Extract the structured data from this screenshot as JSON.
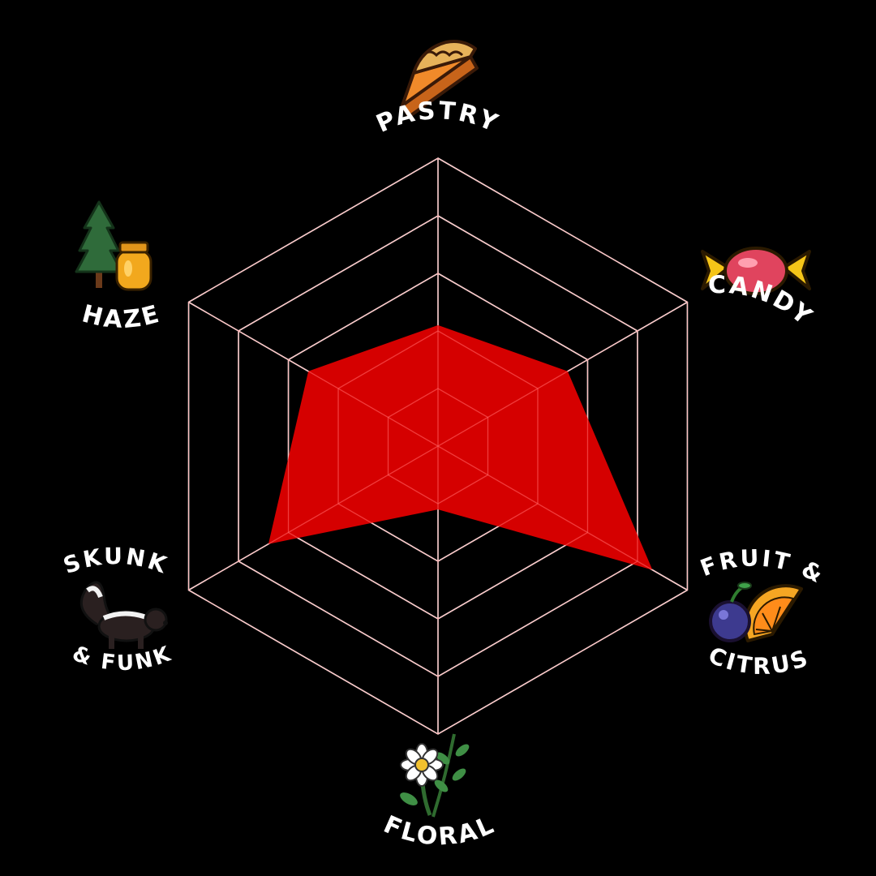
{
  "chart_data": {
    "type": "radar",
    "axes": [
      "PASTRY",
      "CANDY",
      "FRUIT & CITRUS",
      "FLORAL",
      "SKUNK & FUNK",
      "HAZE"
    ],
    "values": [
      2.1,
      2.6,
      4.3,
      1.1,
      3.4,
      2.6
    ],
    "rmax": 5,
    "rings": 5,
    "grid": true,
    "fill_color": "#e00000",
    "grid_color": "#ffffff",
    "background": "#000000"
  },
  "labels": {
    "pastry": "PASTRY",
    "candy": "CANDY",
    "fruit_line1": "FRUIT &",
    "fruit_line2": "CITRUS",
    "floral": "FLORAL",
    "skunk_line1": "SKUNK",
    "skunk_line2": "& FUNK",
    "haze": "HAZE"
  },
  "icons": {
    "pastry": "pie-slice-icon",
    "candy": "wrapped-candy-icon",
    "fruit": "blueberry-orange-icon",
    "floral": "daisy-sprig-icon",
    "skunk": "skunk-icon",
    "haze": "pine-honey-icon"
  }
}
